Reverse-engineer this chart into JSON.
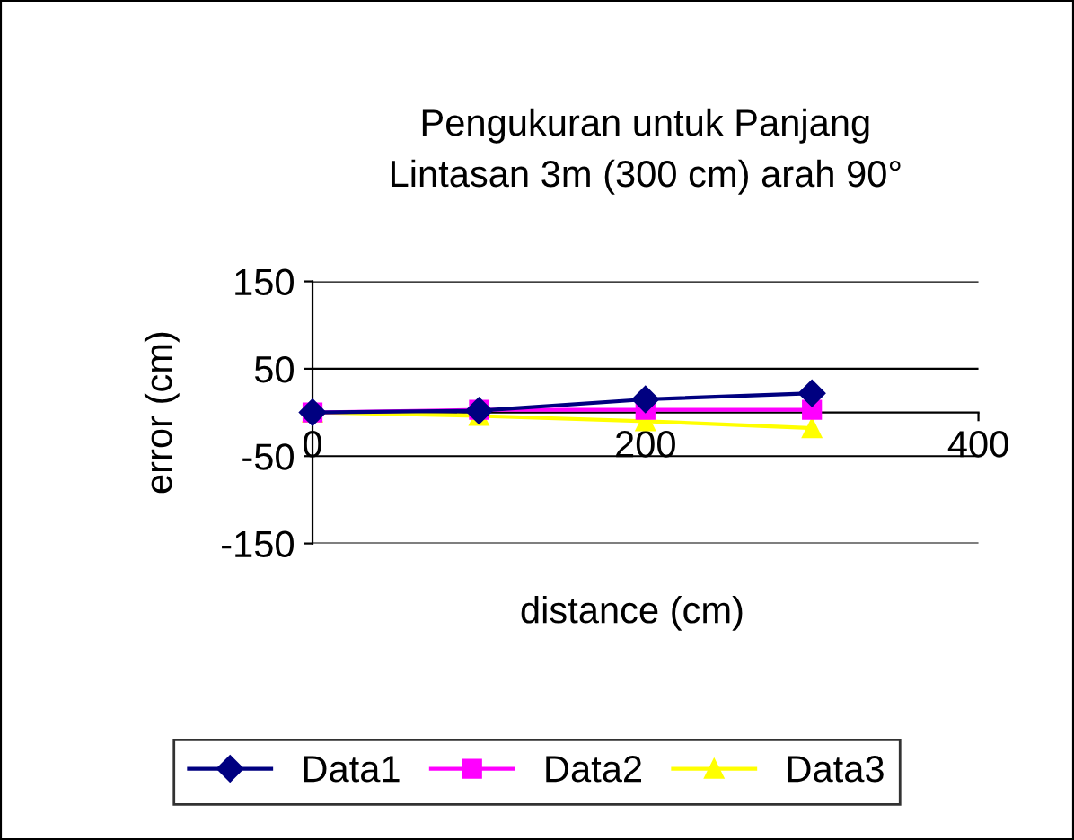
{
  "chart_data": {
    "type": "line",
    "title": "Pengukuran untuk Panjang\nLintasan 3m (300 cm) arah 90°",
    "xlabel": "distance (cm)",
    "ylabel": "error (cm)",
    "x": [
      0,
      100,
      200,
      300
    ],
    "series": [
      {
        "name": "Data1",
        "color": "#000080",
        "values": [
          0,
          2,
          15,
          22
        ],
        "marker": "diamond"
      },
      {
        "name": "Data2",
        "color": "#ff00ff",
        "values": [
          0,
          3,
          3,
          3
        ],
        "marker": "square"
      },
      {
        "name": "Data3",
        "color": "#ffff00",
        "values": [
          0,
          -4,
          -10,
          -18
        ],
        "marker": "triangle"
      }
    ],
    "xlim": [
      0,
      400
    ],
    "xticks": [
      0,
      200,
      400
    ],
    "ylim": [
      -150,
      150
    ],
    "yticks": [
      -150,
      -50,
      50,
      150
    ],
    "grid": "y",
    "legend": "bottom",
    "line_style": "solid"
  }
}
